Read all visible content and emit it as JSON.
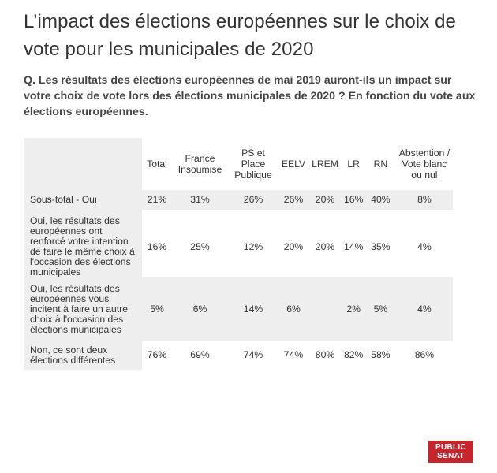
{
  "title": "L’impact des élections européennes sur le choix de vote pour les municipales de 2020",
  "subtitle": "Q. Les résultats des élections européennes de mai 2019 auront-ils un impact sur votre choix de vote lors des élections municipales de 2020 ? En fonction du vote aux élections européennes.",
  "logo": {
    "line1": "PUBLIC",
    "line2": "SENAT"
  },
  "chart_data": {
    "type": "table",
    "title": "L’impact des élections européennes sur le choix de vote pour les municipales de 2020",
    "columns": [
      "Total",
      "France Insoumise",
      "PS et Place Publique",
      "EELV",
      "LREM",
      "LR",
      "RN",
      "Abstention / Vote blanc ou nul"
    ],
    "rows": [
      {
        "label": "Sous-total - Oui",
        "values": [
          "21%",
          "31%",
          "26%",
          "26%",
          "20%",
          "16%",
          "40%",
          "8%"
        ]
      },
      {
        "label": "Oui, les résultats des européennes ont renforcé votre intention de faire le même choix à l'occasion des élections municipales",
        "values": [
          "16%",
          "25%",
          "12%",
          "20%",
          "20%",
          "14%",
          "35%",
          "4%"
        ]
      },
      {
        "label": "Oui, les résultats des européennes vous incitent à faire un autre choix à l'occasion des élections municipales",
        "values": [
          "5%",
          "6%",
          "14%",
          "6%",
          "",
          "2%",
          "5%",
          "4%"
        ]
      },
      {
        "label": "Non, ce sont deux élections différentes",
        "values": [
          "76%",
          "69%",
          "74%",
          "74%",
          "80%",
          "82%",
          "58%",
          "86%"
        ]
      }
    ]
  },
  "colors": {
    "band": "#eeeeee",
    "logo_bg": "#c6252c",
    "text": "#333333"
  }
}
